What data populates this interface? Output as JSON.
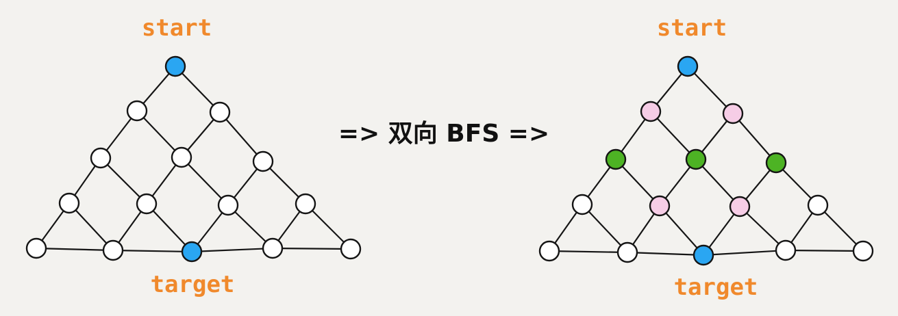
{
  "colors": {
    "edge": "#151515",
    "empty_node": "#ffffff",
    "start_target_node": "#2aa6f2",
    "green_node": "#4db324",
    "pink_node": "#f6cde6",
    "label_orange": "#f0892c"
  },
  "left_graph": {
    "start_label": "start",
    "target_label": "target"
  },
  "middle_label": "=> 双向 BFS =>",
  "right_graph": {
    "start_label": "start",
    "target_label": "target"
  }
}
